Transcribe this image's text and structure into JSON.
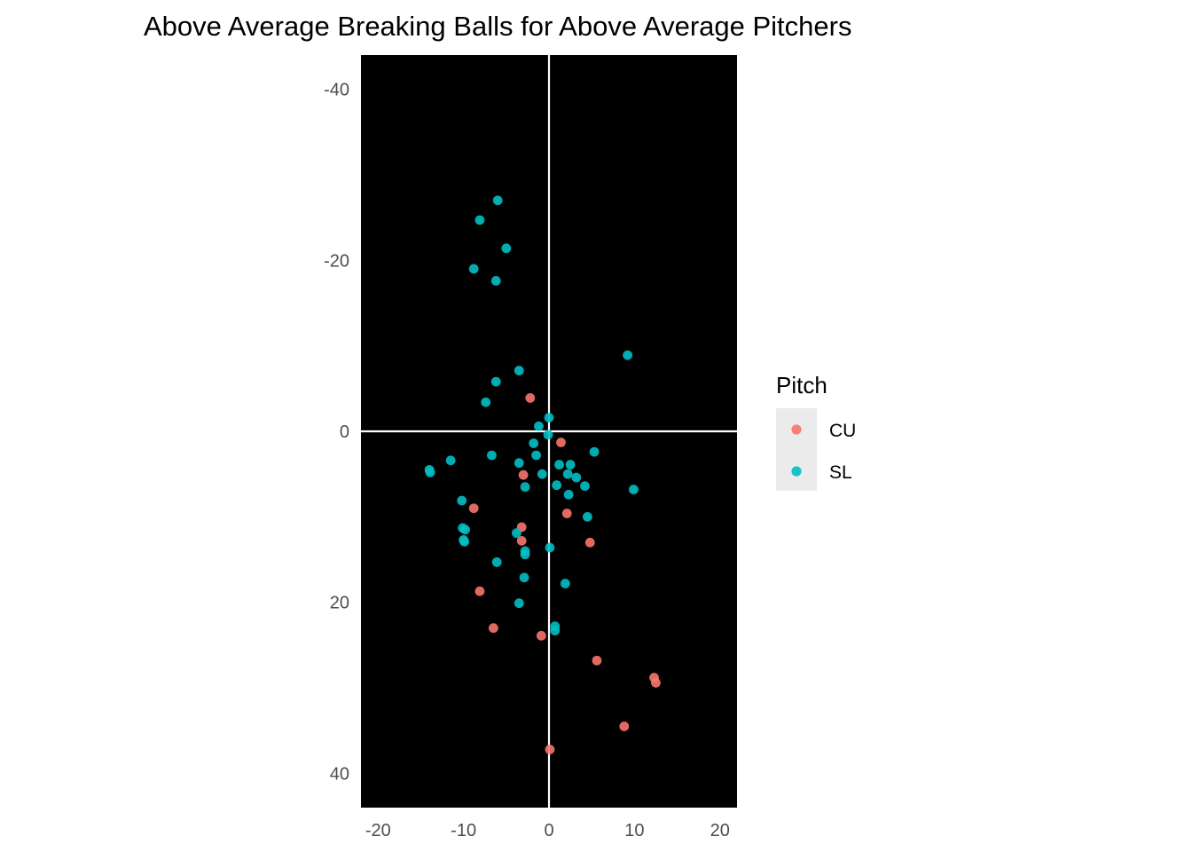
{
  "chart_data": {
    "type": "scatter",
    "title": "Above Average Breaking Balls for Above Average Pitchers",
    "xlabel": "",
    "ylabel": "",
    "xlim": [
      -22,
      22
    ],
    "ylim": [
      -44,
      44
    ],
    "y_reversed": true,
    "x_ticks": [
      -20,
      -10,
      0,
      10,
      20
    ],
    "y_ticks": [
      -40,
      -20,
      0,
      20,
      40
    ],
    "panel_background": "#000000",
    "reference_lines": {
      "x": 0,
      "y": 0,
      "color": "#ffffff"
    },
    "grid": false,
    "legend": {
      "title": "Pitch",
      "position": "right"
    },
    "series": [
      {
        "name": "CU",
        "color": "#f8766d",
        "points": [
          [
            -2.2,
            -3.9
          ],
          [
            1.4,
            1.3
          ],
          [
            -3.0,
            5.1
          ],
          [
            -8.8,
            9.0
          ],
          [
            2.1,
            9.6
          ],
          [
            -3.2,
            11.2
          ],
          [
            -3.2,
            12.8
          ],
          [
            4.8,
            13.0
          ],
          [
            -8.1,
            18.7
          ],
          [
            -6.5,
            23.0
          ],
          [
            -0.9,
            23.9
          ],
          [
            5.6,
            26.8
          ],
          [
            12.3,
            28.8
          ],
          [
            12.5,
            29.4
          ],
          [
            8.8,
            34.5
          ],
          [
            0.1,
            37.2
          ]
        ]
      },
      {
        "name": "SL",
        "color": "#00bfc4",
        "points": [
          [
            -6.0,
            -27.0
          ],
          [
            -8.1,
            -24.7
          ],
          [
            -5.0,
            -21.4
          ],
          [
            -8.8,
            -19.0
          ],
          [
            -6.2,
            -17.6
          ],
          [
            9.2,
            -8.9
          ],
          [
            -3.5,
            -7.1
          ],
          [
            -6.2,
            -5.8
          ],
          [
            -7.4,
            -3.4
          ],
          [
            0.0,
            -1.6
          ],
          [
            -1.2,
            -0.6
          ],
          [
            -0.1,
            0.4
          ],
          [
            -1.8,
            1.4
          ],
          [
            5.3,
            2.4
          ],
          [
            -1.5,
            2.8
          ],
          [
            -6.7,
            2.8
          ],
          [
            -11.5,
            3.4
          ],
          [
            -3.5,
            3.7
          ],
          [
            1.2,
            3.9
          ],
          [
            2.5,
            3.9
          ],
          [
            -14.0,
            4.5
          ],
          [
            -13.9,
            4.8
          ],
          [
            -0.8,
            5.0
          ],
          [
            2.2,
            5.0
          ],
          [
            3.2,
            5.4
          ],
          [
            0.9,
            6.3
          ],
          [
            4.2,
            6.4
          ],
          [
            -2.8,
            6.5
          ],
          [
            9.9,
            6.8
          ],
          [
            2.3,
            7.4
          ],
          [
            -10.2,
            8.1
          ],
          [
            4.5,
            10.0
          ],
          [
            -10.1,
            11.3
          ],
          [
            -9.8,
            11.5
          ],
          [
            -3.8,
            11.9
          ],
          [
            -10.0,
            12.7
          ],
          [
            -9.9,
            12.9
          ],
          [
            0.1,
            13.6
          ],
          [
            -2.8,
            14.0
          ],
          [
            -2.8,
            14.4
          ],
          [
            -6.1,
            15.3
          ],
          [
            -2.9,
            17.1
          ],
          [
            1.9,
            17.8
          ],
          [
            -3.5,
            20.1
          ],
          [
            0.7,
            22.8
          ],
          [
            0.7,
            23.3
          ]
        ]
      }
    ]
  }
}
